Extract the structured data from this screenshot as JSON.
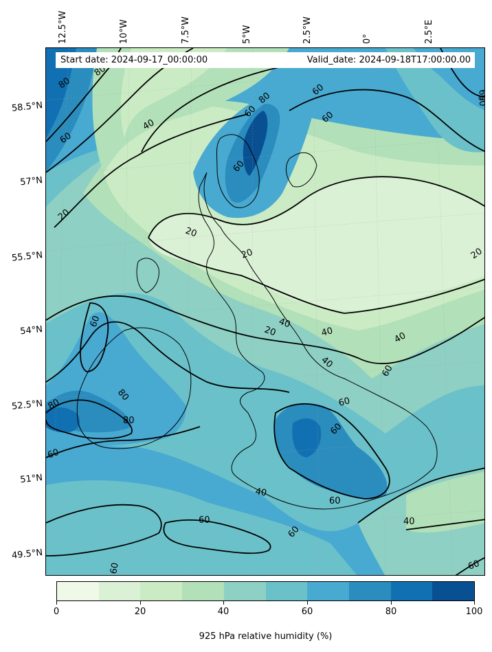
{
  "map": {
    "info": {
      "start": "Start date: 2024-09-17_00:00:00",
      "valid": "Valid_date: 2024-09-18T17:00:00.00"
    },
    "lon_labels": [
      "12.5°W",
      "10°W",
      "7.5°W",
      "5°W",
      "2.5°W",
      "0°",
      "2.5°E"
    ],
    "lat_labels": [
      "58.5°N",
      "57°N",
      "55.5°N",
      "54°N",
      "52.5°N",
      "51°N",
      "49.5°N"
    ],
    "contour_labels": [
      "80",
      "80",
      "60",
      "40",
      "20",
      "60",
      "80",
      "60",
      "60",
      "60",
      "20",
      "20",
      "20",
      "40",
      "40",
      "40",
      "20",
      "40",
      "60",
      "60",
      "80",
      "80",
      "80",
      "60",
      "60",
      "60",
      "60",
      "60",
      "40",
      "40",
      "60",
      "60",
      "60",
      "60",
      "60"
    ],
    "colorbar": {
      "title": "925 hPa relative humidity (%)",
      "ticks": [
        "0",
        "20",
        "40",
        "60",
        "80",
        "100"
      ],
      "colors": [
        "#f0f9e8",
        "#dbf1d6",
        "#cbebc5",
        "#b2e0b8",
        "#8ed0c3",
        "#6bc1ca",
        "#48a9d1",
        "#2b8cbe",
        "#1170b1",
        "#085092"
      ]
    },
    "colors": {
      "coast": "#000000",
      "contour": "#000000"
    },
    "icons": [
      "coastline",
      "graticule",
      "contour-lines"
    ]
  }
}
